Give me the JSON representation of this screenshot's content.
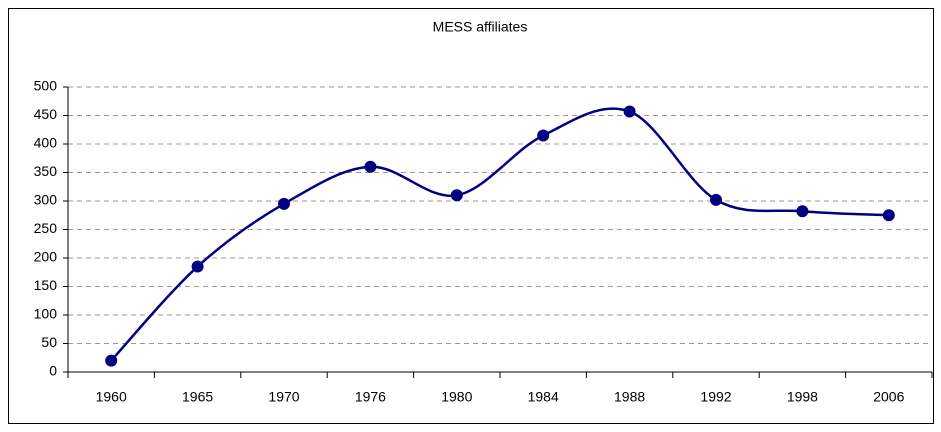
{
  "chart_data": {
    "type": "line",
    "title": "MESS affiliates",
    "categories": [
      "1960",
      "1965",
      "1970",
      "1976",
      "1980",
      "1984",
      "1988",
      "1992",
      "1998",
      "2006"
    ],
    "series": [
      {
        "name": "MESS affiliates",
        "color": "#000080",
        "values": [
          20,
          185,
          295,
          360,
          310,
          415,
          457,
          302,
          282,
          275
        ]
      }
    ],
    "ylim": [
      0,
      500
    ],
    "yticks": [
      0,
      50,
      100,
      150,
      200,
      250,
      300,
      350,
      400,
      450,
      500
    ],
    "grid": true,
    "smooth": true
  }
}
